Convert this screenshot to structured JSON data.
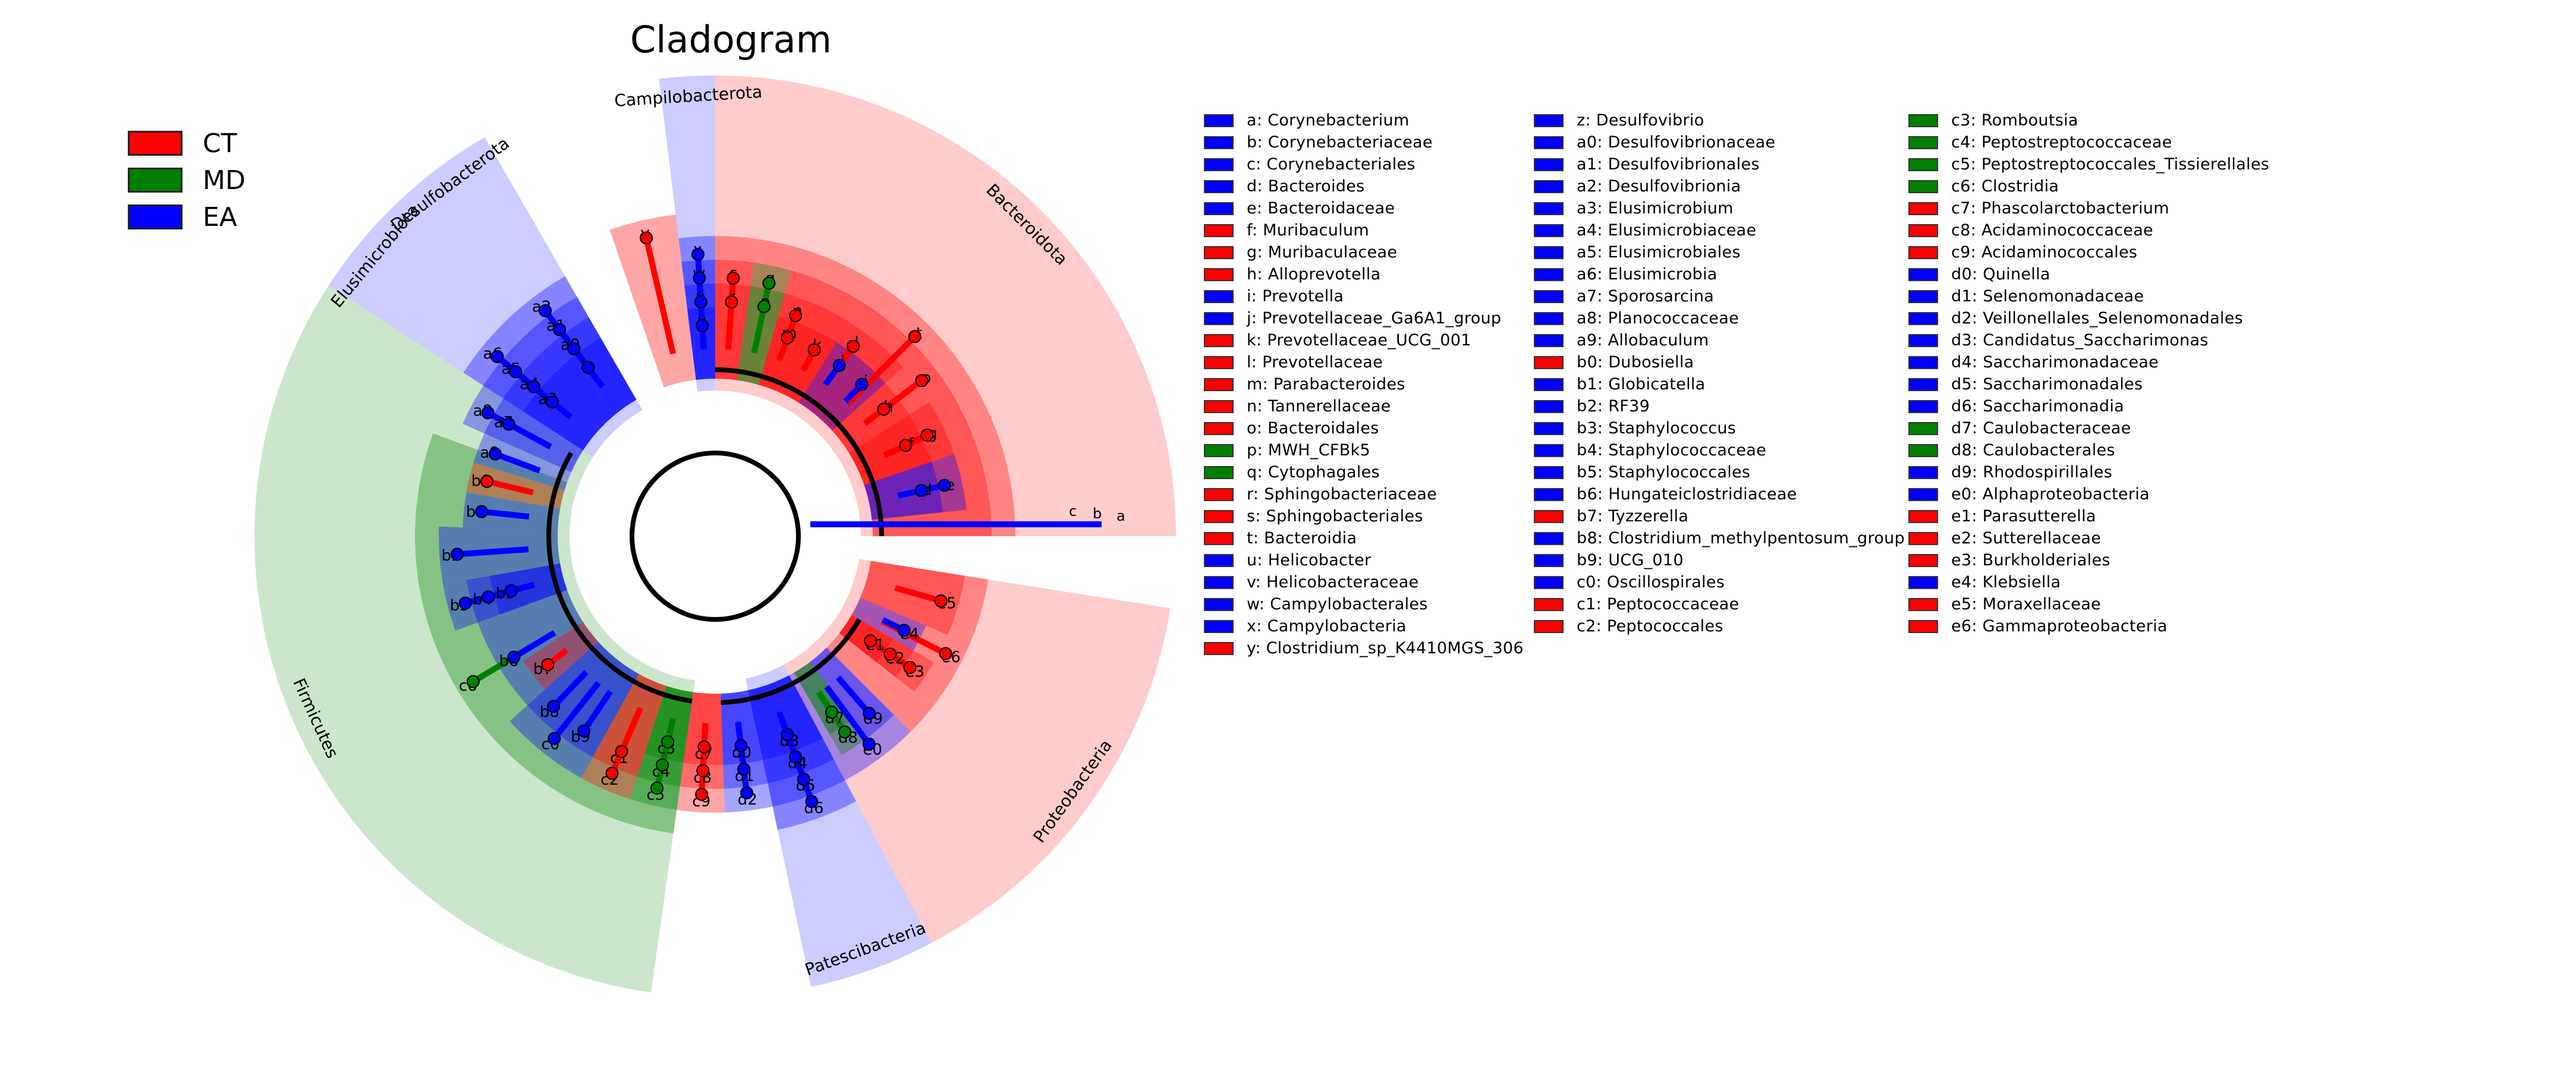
{
  "title": "Cladogram",
  "groups": [
    {
      "name": "CT",
      "color": "#ff0000"
    },
    {
      "name": "MD",
      "color": "#008000"
    },
    {
      "name": "EA",
      "color": "#0000ff"
    }
  ],
  "legend_columns": [
    [
      {
        "code": "a",
        "name": "Corynebacterium",
        "group": "EA"
      },
      {
        "code": "b",
        "name": "Corynebacteriaceae",
        "group": "EA"
      },
      {
        "code": "c",
        "name": "Corynebacteriales",
        "group": "EA"
      },
      {
        "code": "d",
        "name": "Bacteroides",
        "group": "EA"
      },
      {
        "code": "e",
        "name": "Bacteroidaceae",
        "group": "EA"
      },
      {
        "code": "f",
        "name": "Muribaculum",
        "group": "CT"
      },
      {
        "code": "g",
        "name": "Muribaculaceae",
        "group": "CT"
      },
      {
        "code": "h",
        "name": "Alloprevotella",
        "group": "CT"
      },
      {
        "code": "i",
        "name": "Prevotella",
        "group": "EA"
      },
      {
        "code": "j",
        "name": "Prevotellaceae_Ga6A1_group",
        "group": "EA"
      },
      {
        "code": "k",
        "name": "Prevotellaceae_UCG_001",
        "group": "CT"
      },
      {
        "code": "l",
        "name": "Prevotellaceae",
        "group": "CT"
      },
      {
        "code": "m",
        "name": "Parabacteroides",
        "group": "CT"
      },
      {
        "code": "n",
        "name": "Tannerellaceae",
        "group": "CT"
      },
      {
        "code": "o",
        "name": "Bacteroidales",
        "group": "CT"
      },
      {
        "code": "p",
        "name": "MWH_CFBk5",
        "group": "MD"
      },
      {
        "code": "q",
        "name": "Cytophagales",
        "group": "MD"
      },
      {
        "code": "r",
        "name": "Sphingobacteriaceae",
        "group": "CT"
      },
      {
        "code": "s",
        "name": "Sphingobacteriales",
        "group": "CT"
      },
      {
        "code": "t",
        "name": "Bacteroidia",
        "group": "CT"
      },
      {
        "code": "u",
        "name": "Helicobacter",
        "group": "EA"
      },
      {
        "code": "v",
        "name": "Helicobacteraceae",
        "group": "EA"
      },
      {
        "code": "w",
        "name": "Campylobacterales",
        "group": "EA"
      },
      {
        "code": "x",
        "name": "Campylobacteria",
        "group": "EA"
      },
      {
        "code": "y",
        "name": "Clostridium_sp_K4410MGS_306",
        "group": "CT"
      }
    ],
    [
      {
        "code": "z",
        "name": "Desulfovibrio",
        "group": "EA"
      },
      {
        "code": "a0",
        "name": "Desulfovibrionaceae",
        "group": "EA"
      },
      {
        "code": "a1",
        "name": "Desulfovibrionales",
        "group": "EA"
      },
      {
        "code": "a2",
        "name": "Desulfovibrionia",
        "group": "EA"
      },
      {
        "code": "a3",
        "name": "Elusimicrobium",
        "group": "EA"
      },
      {
        "code": "a4",
        "name": "Elusimicrobiaceae",
        "group": "EA"
      },
      {
        "code": "a5",
        "name": "Elusimicrobiales",
        "group": "EA"
      },
      {
        "code": "a6",
        "name": "Elusimicrobia",
        "group": "EA"
      },
      {
        "code": "a7",
        "name": "Sporosarcina",
        "group": "EA"
      },
      {
        "code": "a8",
        "name": "Planococcaceae",
        "group": "EA"
      },
      {
        "code": "a9",
        "name": "Allobaculum",
        "group": "EA"
      },
      {
        "code": "b0",
        "name": "Dubosiella",
        "group": "CT"
      },
      {
        "code": "b1",
        "name": "Globicatella",
        "group": "EA"
      },
      {
        "code": "b2",
        "name": "RF39",
        "group": "EA"
      },
      {
        "code": "b3",
        "name": "Staphylococcus",
        "group": "EA"
      },
      {
        "code": "b4",
        "name": "Staphylococcaceae",
        "group": "EA"
      },
      {
        "code": "b5",
        "name": "Staphylococcales",
        "group": "EA"
      },
      {
        "code": "b6",
        "name": "Hungateiclostridiaceae",
        "group": "EA"
      },
      {
        "code": "b7",
        "name": "Tyzzerella",
        "group": "CT"
      },
      {
        "code": "b8",
        "name": "Clostridium_methylpentosum_group",
        "group": "EA"
      },
      {
        "code": "b9",
        "name": "UCG_010",
        "group": "EA"
      },
      {
        "code": "c0",
        "name": "Oscillospirales",
        "group": "EA"
      },
      {
        "code": "c1",
        "name": "Peptococcaceae",
        "group": "CT"
      },
      {
        "code": "c2",
        "name": "Peptococcales",
        "group": "CT"
      }
    ],
    [
      {
        "code": "c3",
        "name": "Romboutsia",
        "group": "MD"
      },
      {
        "code": "c4",
        "name": "Peptostreptococcaceae",
        "group": "MD"
      },
      {
        "code": "c5",
        "name": "Peptostreptococcales_Tissierellales",
        "group": "MD"
      },
      {
        "code": "c6",
        "name": "Clostridia",
        "group": "MD"
      },
      {
        "code": "c7",
        "name": "Phascolarctobacterium",
        "group": "CT"
      },
      {
        "code": "c8",
        "name": "Acidaminococcaceae",
        "group": "CT"
      },
      {
        "code": "c9",
        "name": "Acidaminococcales",
        "group": "CT"
      },
      {
        "code": "d0",
        "name": "Quinella",
        "group": "EA"
      },
      {
        "code": "d1",
        "name": "Selenomonadaceae",
        "group": "EA"
      },
      {
        "code": "d2",
        "name": "Veillonellales_Selenomonadales",
        "group": "EA"
      },
      {
        "code": "d3",
        "name": "Candidatus_Saccharimonas",
        "group": "EA"
      },
      {
        "code": "d4",
        "name": "Saccharimonadaceae",
        "group": "EA"
      },
      {
        "code": "d5",
        "name": "Saccharimonadales",
        "group": "EA"
      },
      {
        "code": "d6",
        "name": "Saccharimonadia",
        "group": "EA"
      },
      {
        "code": "d7",
        "name": "Caulobacteraceae",
        "group": "MD"
      },
      {
        "code": "d8",
        "name": "Caulobacterales",
        "group": "MD"
      },
      {
        "code": "d9",
        "name": "Rhodospirillales",
        "group": "EA"
      },
      {
        "code": "e0",
        "name": "Alphaproteobacteria",
        "group": "EA"
      },
      {
        "code": "e1",
        "name": "Parasutterella",
        "group": "CT"
      },
      {
        "code": "e2",
        "name": "Sutterellaceae",
        "group": "CT"
      },
      {
        "code": "e3",
        "name": "Burkholderiales",
        "group": "CT"
      },
      {
        "code": "e4",
        "name": "Klebsiella",
        "group": "EA"
      },
      {
        "code": "e5",
        "name": "Moraxellaceae",
        "group": "CT"
      },
      {
        "code": "e6",
        "name": "Gammaproteobacteria",
        "group": "CT"
      }
    ]
  ],
  "phyla": [
    {
      "name": "Bacteroidota",
      "group": "CT"
    },
    {
      "name": "Campilobacterota",
      "group": "EA"
    },
    {
      "name": "Desulfobacterota",
      "group": "EA"
    },
    {
      "name": "Elusimicrobiota",
      "group": "EA"
    },
    {
      "name": "Firmicutes",
      "group": "MD"
    },
    {
      "name": "Patescibacteria",
      "group": "EA"
    },
    {
      "name": "Proteobacteria",
      "group": "CT"
    }
  ],
  "sectors": [
    {
      "label": "y",
      "level": 5,
      "start": -19,
      "end": -7,
      "group": "CT"
    },
    {
      "label": "x",
      "level": 4,
      "start": -7,
      "end": 0,
      "group": "EA"
    },
    {
      "label": "w",
      "level": 3,
      "start": -7,
      "end": 0,
      "group": "EA"
    },
    {
      "label": "v",
      "level": 2,
      "start": -7,
      "end": 0,
      "group": "EA"
    },
    {
      "label": "u",
      "level": 1,
      "start": -7,
      "end": 0,
      "group": "EA"
    },
    {
      "label": "t",
      "level": 4,
      "start": 0,
      "end": 90,
      "group": "CT"
    },
    {
      "label": "s",
      "level": 3,
      "start": 0,
      "end": 8,
      "group": "CT"
    },
    {
      "label": "r",
      "level": 2,
      "start": 0,
      "end": 8,
      "group": "CT"
    },
    {
      "label": "q",
      "level": 3,
      "start": 8,
      "end": 16,
      "group": "MD"
    },
    {
      "label": "p",
      "level": 2,
      "start": 8,
      "end": 16,
      "group": "MD"
    },
    {
      "label": "o",
      "level": 3,
      "start": 16,
      "end": 90,
      "group": "CT"
    },
    {
      "label": "n",
      "level": 2,
      "start": 16,
      "end": 24,
      "group": "CT"
    },
    {
      "label": "m",
      "level": 1,
      "start": 16,
      "end": 24,
      "group": "CT"
    },
    {
      "label": "l",
      "level": 2,
      "start": 24,
      "end": 48,
      "group": "CT"
    },
    {
      "label": "k",
      "level": 1,
      "start": 24,
      "end": 32,
      "group": "CT"
    },
    {
      "label": "j",
      "level": 1,
      "start": 32,
      "end": 40,
      "group": "EA"
    },
    {
      "label": "i",
      "level": 1,
      "start": 40,
      "end": 48,
      "group": "EA"
    },
    {
      "label": "h",
      "level": 1,
      "start": 48,
      "end": 58,
      "group": "CT"
    },
    {
      "label": "g",
      "level": 2,
      "start": 58,
      "end": 71,
      "group": "CT"
    },
    {
      "label": "f",
      "level": 1,
      "start": 58,
      "end": 71,
      "group": "CT"
    },
    {
      "label": "e",
      "level": 2,
      "start": 71,
      "end": 84,
      "group": "EA"
    },
    {
      "label": "d",
      "level": 1,
      "start": 71,
      "end": 84,
      "group": "EA"
    },
    {
      "label": "e6",
      "level": 3,
      "start": 99,
      "end": 135,
      "group": "CT"
    },
    {
      "label": "e5",
      "level": 2,
      "start": 99,
      "end": 113,
      "group": "CT"
    },
    {
      "label": "e4",
      "level": 1,
      "start": 113,
      "end": 120,
      "group": "EA"
    },
    {
      "label": "e3",
      "level": 2,
      "start": 120,
      "end": 128,
      "group": "CT"
    },
    {
      "label": "e2",
      "level": 1,
      "start": 120,
      "end": 128,
      "group": "CT"
    },
    {
      "label": "e1",
      "level": 0,
      "start": 120,
      "end": 128,
      "group": "CT"
    },
    {
      "label": "e0",
      "level": 3,
      "start": 135,
      "end": 152,
      "group": "EA"
    },
    {
      "label": "d9",
      "level": 2,
      "start": 135,
      "end": 143,
      "group": "EA"
    },
    {
      "label": "d8",
      "level": 2,
      "start": 143,
      "end": 150,
      "group": "MD"
    },
    {
      "label": "d7",
      "level": 1,
      "start": 143,
      "end": 150,
      "group": "MD"
    },
    {
      "label": "d6",
      "level": 4,
      "start": 152,
      "end": 168,
      "group": "EA"
    },
    {
      "label": "d5",
      "level": 3,
      "start": 152,
      "end": 168,
      "group": "EA"
    },
    {
      "label": "d4",
      "level": 2,
      "start": 152,
      "end": 168,
      "group": "EA"
    },
    {
      "label": "d3",
      "level": 1,
      "start": 152,
      "end": 168,
      "group": "EA"
    },
    {
      "label": "d2",
      "level": 3,
      "start": 168,
      "end": 178,
      "group": "EA"
    },
    {
      "label": "d1",
      "level": 2,
      "start": 168,
      "end": 178,
      "group": "EA"
    },
    {
      "label": "d0",
      "level": 1,
      "start": 168,
      "end": 178,
      "group": "EA"
    },
    {
      "label": "c9",
      "level": 3,
      "start": 178,
      "end": 188,
      "group": "CT"
    },
    {
      "label": "c8",
      "level": 2,
      "start": 178,
      "end": 188,
      "group": "CT"
    },
    {
      "label": "c7",
      "level": 1,
      "start": 178,
      "end": 188,
      "group": "CT"
    },
    {
      "label": "c6",
      "level": 4,
      "start": 188,
      "end": 290,
      "group": "MD"
    },
    {
      "label": "c5",
      "level": 3,
      "start": 188,
      "end": 198,
      "group": "MD"
    },
    {
      "label": "c4",
      "level": 2,
      "start": 188,
      "end": 198,
      "group": "MD"
    },
    {
      "label": "c3",
      "level": 1,
      "start": 188,
      "end": 198,
      "group": "MD"
    },
    {
      "label": "c2",
      "level": 3,
      "start": 198,
      "end": 209,
      "group": "CT"
    },
    {
      "label": "c1",
      "level": 2,
      "start": 198,
      "end": 209,
      "group": "CT"
    },
    {
      "label": "c0",
      "level": 3,
      "start": 209,
      "end": 228,
      "group": "EA"
    },
    {
      "label": "b9",
      "level": 2,
      "start": 209,
      "end": 219,
      "group": "EA"
    },
    {
      "label": "b8",
      "level": 2,
      "start": 219,
      "end": 228,
      "group": "EA"
    },
    {
      "label": "b7",
      "level": 1,
      "start": 228,
      "end": 237,
      "group": "CT"
    },
    {
      "label": "b6",
      "level": 2,
      "start": 228,
      "end": 250,
      "group": "EA"
    },
    {
      "label": "b5",
      "level": 3,
      "start": 250,
      "end": 260,
      "group": "EA"
    },
    {
      "label": "b4",
      "level": 2,
      "start": 250,
      "end": 260,
      "group": "EA"
    },
    {
      "label": "b3",
      "level": 1,
      "start": 250,
      "end": 260,
      "group": "EA"
    },
    {
      "label": "b2",
      "level": 3,
      "start": 260,
      "end": 272,
      "group": "EA"
    },
    {
      "label": "b1",
      "level": 2,
      "start": 272,
      "end": 280,
      "group": "EA"
    },
    {
      "label": "b0",
      "level": 2,
      "start": 280,
      "end": 287,
      "group": "CT"
    },
    {
      "label": "a9",
      "level": 2,
      "start": 287,
      "end": 294,
      "group": "EA"
    },
    {
      "label": "a8",
      "level": 3,
      "start": 294,
      "end": 303,
      "group": "EA"
    },
    {
      "label": "a7",
      "level": 2,
      "start": 294,
      "end": 303,
      "group": "EA"
    },
    {
      "label": "a6",
      "level": 4,
      "start": 303,
      "end": 316,
      "group": "EA"
    },
    {
      "label": "a5",
      "level": 3,
      "start": 303,
      "end": 316,
      "group": "EA"
    },
    {
      "label": "a4",
      "level": 2,
      "start": 303,
      "end": 316,
      "group": "EA"
    },
    {
      "label": "a3",
      "level": 1,
      "start": 303,
      "end": 316,
      "group": "EA"
    },
    {
      "label": "a2",
      "level": 4,
      "start": 316,
      "end": 330,
      "group": "EA"
    },
    {
      "label": "a1",
      "level": 3,
      "start": 316,
      "end": 330,
      "group": "EA"
    },
    {
      "label": "a0",
      "level": 2,
      "start": 316,
      "end": 330,
      "group": "EA"
    },
    {
      "label": "z",
      "level": 1,
      "start": 316,
      "end": 330,
      "group": "EA"
    }
  ],
  "phylum_bands": [
    {
      "name": "Bacteroidota",
      "start": 0,
      "end": 90,
      "group": "CT"
    },
    {
      "name": "Campilobacterota",
      "start": -7,
      "end": 0,
      "group": "EA"
    },
    {
      "name": "Desulfobacterota",
      "start": 316,
      "end": 330,
      "group": "EA"
    },
    {
      "name": "Elusimicrobiota",
      "start": 303,
      "end": 316,
      "group": "EA"
    },
    {
      "name": "Firmicutes",
      "start": 188,
      "end": 303,
      "group": "MD"
    },
    {
      "name": "Patescibacteria",
      "start": 152,
      "end": 168,
      "group": "EA"
    },
    {
      "name": "Proteobacteria",
      "start": 99,
      "end": 152,
      "group": "CT"
    }
  ],
  "corynebacterium_arm": {
    "labels": [
      "c",
      "b",
      "a"
    ],
    "group": "EA"
  }
}
